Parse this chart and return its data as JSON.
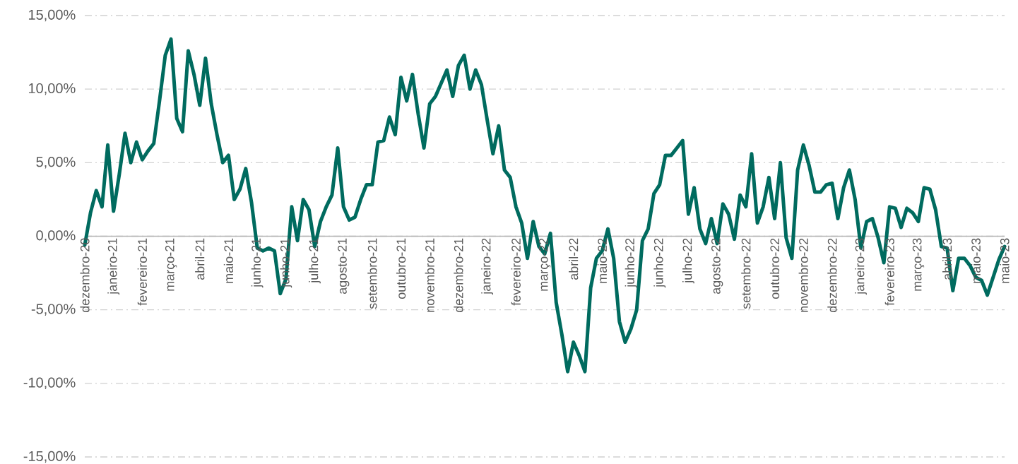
{
  "chart_data": {
    "type": "line",
    "color": "#006b5f",
    "grid": "y",
    "ylim": [
      -15,
      15
    ],
    "yticks": [
      {
        "value": -15,
        "label": "-15,00%"
      },
      {
        "value": -10,
        "label": "-10,00%"
      },
      {
        "value": -5,
        "label": "-5,00%"
      },
      {
        "value": 0,
        "label": "0,00%"
      },
      {
        "value": 5,
        "label": "5,00%"
      },
      {
        "value": 10,
        "label": "10,00%"
      },
      {
        "value": 15,
        "label": "15,00%"
      }
    ],
    "categories": [
      "dezembro-20",
      null,
      null,
      null,
      null,
      "janeiro-21",
      null,
      null,
      null,
      null,
      "fevereiro-21",
      null,
      null,
      null,
      null,
      "março-21",
      null,
      null,
      null,
      null,
      "abril-21",
      null,
      null,
      null,
      null,
      "maio-21",
      null,
      null,
      null,
      null,
      "junho-21",
      null,
      null,
      null,
      null,
      "junho-21",
      null,
      null,
      null,
      null,
      "julho-21",
      null,
      null,
      null,
      null,
      "agosto-21",
      null,
      null,
      null,
      null,
      "setembro-21",
      null,
      null,
      null,
      null,
      "outubro-21",
      null,
      null,
      null,
      null,
      "novembro-21",
      null,
      null,
      null,
      null,
      "dezembro-21",
      null,
      null,
      null,
      null,
      "janeiro-22",
      null,
      null,
      null,
      null,
      "fevereiro-22",
      null,
      null,
      null,
      null,
      "março-22",
      null,
      null,
      null,
      null,
      "abril-22",
      null,
      null,
      null,
      null,
      "maio-22",
      null,
      null,
      null,
      null,
      "junho-22",
      null,
      null,
      null,
      null,
      "junho-22",
      null,
      null,
      null,
      null,
      "julho-22",
      null,
      null,
      null,
      null,
      "agosto-22",
      null,
      null,
      null,
      null,
      "setembro-22",
      null,
      null,
      null,
      null,
      "outubro-22",
      null,
      null,
      null,
      null,
      "novembro-22",
      null,
      null,
      null,
      null,
      "dezembro-22",
      null,
      null,
      null,
      null,
      "janeiro-23",
      null,
      null,
      null,
      null,
      "fevereiro-23",
      null,
      null,
      null,
      null,
      "março-23",
      null,
      null,
      null,
      null,
      "abril-23",
      null,
      null,
      null,
      null,
      "maio-23",
      null,
      null,
      null,
      null,
      "maio-23"
    ],
    "values": [
      -0.6,
      1.6,
      3.1,
      2.0,
      6.2,
      1.7,
      4.2,
      7.0,
      5.0,
      6.4,
      5.2,
      5.8,
      6.3,
      9.2,
      12.3,
      13.4,
      8.0,
      7.1,
      12.6,
      11.0,
      8.9,
      12.1,
      9.0,
      6.9,
      5.0,
      5.5,
      2.5,
      3.2,
      4.6,
      2.3,
      -0.8,
      -1.0,
      -0.8,
      -1.0,
      -3.9,
      -2.9,
      2.0,
      -0.3,
      2.5,
      1.8,
      -0.7,
      1.0,
      2.0,
      2.8,
      6.0,
      2.0,
      1.1,
      1.3,
      2.5,
      3.5,
      3.5,
      6.4,
      6.5,
      8.1,
      6.9,
      10.8,
      9.2,
      11.0,
      8.3,
      6.0,
      9.0,
      9.5,
      10.4,
      11.3,
      9.5,
      11.6,
      12.3,
      10.0,
      11.3,
      10.3,
      7.9,
      5.6,
      7.5,
      4.5,
      4.0,
      2.0,
      0.9,
      -1.5,
      1.0,
      -0.7,
      -1.2,
      0.2,
      -4.5,
      -6.7,
      -9.2,
      -7.2,
      -8.1,
      -9.2,
      -3.5,
      -1.5,
      -1.0,
      0.5,
      -1.5,
      -5.8,
      -7.2,
      -6.3,
      -5.0,
      -0.3,
      0.5,
      2.9,
      3.5,
      5.5,
      5.5,
      6.0,
      6.5,
      1.5,
      3.3,
      0.5,
      -0.5,
      1.2,
      -0.5,
      2.2,
      1.5,
      -0.2,
      2.8,
      2.0,
      5.6,
      0.9,
      2.0,
      4.0,
      1.2,
      5.0,
      -0.1,
      -1.5,
      4.5,
      6.2,
      4.8,
      3.0,
      3.0,
      3.5,
      3.6,
      1.2,
      3.3,
      4.5,
      2.5,
      -0.8,
      1.0,
      1.2,
      -0.1,
      -1.8,
      2.0,
      1.9,
      0.6,
      1.9,
      1.6,
      1.0,
      3.3,
      3.2,
      1.8,
      -0.7,
      -0.8,
      -3.7,
      -1.5,
      -1.5,
      -2.0,
      -2.8,
      -3.0,
      -4.0,
      -2.8,
      -1.6,
      -0.7
    ]
  }
}
